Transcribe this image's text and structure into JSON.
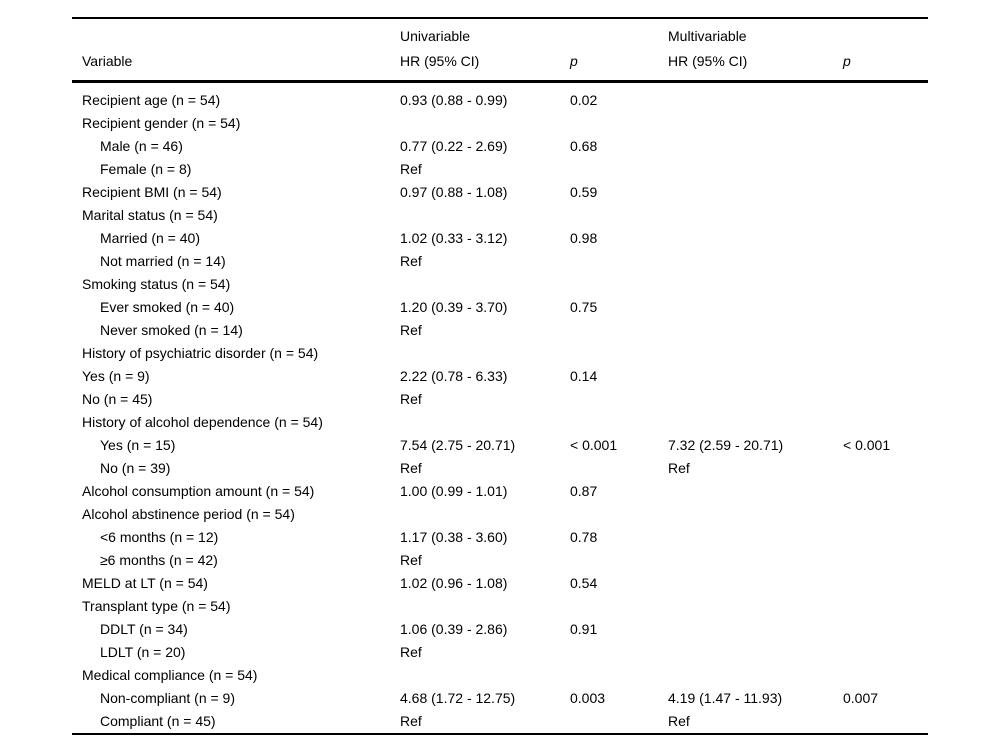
{
  "colors": {
    "text": "#000000",
    "background": "#ffffff",
    "rule": "#000000"
  },
  "table": {
    "header": {
      "group_univariable": "Univariable",
      "group_multivariable": "Multivariable",
      "col_variable": "Variable",
      "col_uni_hr": "HR (95% CI)",
      "col_uni_p": "p",
      "col_multi_hr": "HR (95% CI)",
      "col_multi_p": "p"
    },
    "rows": [
      {
        "variable": "Recipient age (n = 54)",
        "indent": 0,
        "uni_hr": "0.93 (0.88 - 0.99)",
        "uni_p": "0.02",
        "multi_hr": "",
        "multi_p": ""
      },
      {
        "variable": "Recipient gender (n = 54)",
        "indent": 0,
        "uni_hr": "",
        "uni_p": "",
        "multi_hr": "",
        "multi_p": ""
      },
      {
        "variable": "Male (n = 46)",
        "indent": 1,
        "uni_hr": "0.77 (0.22 - 2.69)",
        "uni_p": "0.68",
        "multi_hr": "",
        "multi_p": ""
      },
      {
        "variable": "Female (n = 8)",
        "indent": 1,
        "uni_hr": "Ref",
        "uni_p": "",
        "multi_hr": "",
        "multi_p": ""
      },
      {
        "variable": "Recipient BMI (n = 54)",
        "indent": 0,
        "uni_hr": "0.97 (0.88 - 1.08)",
        "uni_p": "0.59",
        "multi_hr": "",
        "multi_p": ""
      },
      {
        "variable": "Marital status (n = 54)",
        "indent": 0,
        "uni_hr": "",
        "uni_p": "",
        "multi_hr": "",
        "multi_p": ""
      },
      {
        "variable": "Married (n = 40)",
        "indent": 1,
        "uni_hr": "1.02 (0.33 - 3.12)",
        "uni_p": "0.98",
        "multi_hr": "",
        "multi_p": ""
      },
      {
        "variable": "Not married (n = 14)",
        "indent": 1,
        "uni_hr": "Ref",
        "uni_p": "",
        "multi_hr": "",
        "multi_p": ""
      },
      {
        "variable": "Smoking status (n = 54)",
        "indent": 0,
        "uni_hr": "",
        "uni_p": "",
        "multi_hr": "",
        "multi_p": ""
      },
      {
        "variable": "Ever smoked (n = 40)",
        "indent": 1,
        "uni_hr": "1.20 (0.39 - 3.70)",
        "uni_p": "0.75",
        "multi_hr": "",
        "multi_p": ""
      },
      {
        "variable": "Never smoked (n = 14)",
        "indent": 1,
        "uni_hr": "Ref",
        "uni_p": "",
        "multi_hr": "",
        "multi_p": ""
      },
      {
        "variable": "History of psychiatric disorder (n = 54)",
        "indent": 0,
        "uni_hr": "",
        "uni_p": "",
        "multi_hr": "",
        "multi_p": ""
      },
      {
        "variable": "Yes (n = 9)",
        "indent": 0,
        "uni_hr": "2.22 (0.78 - 6.33)",
        "uni_p": "0.14",
        "multi_hr": "",
        "multi_p": ""
      },
      {
        "variable": "No (n = 45)",
        "indent": 0,
        "uni_hr": "Ref",
        "uni_p": "",
        "multi_hr": "",
        "multi_p": ""
      },
      {
        "variable": "History of alcohol dependence (n = 54)",
        "indent": 0,
        "uni_hr": "",
        "uni_p": "",
        "multi_hr": "",
        "multi_p": ""
      },
      {
        "variable": "Yes (n = 15)",
        "indent": 1,
        "uni_hr": "7.54 (2.75 - 20.71)",
        "uni_p": "< 0.001",
        "multi_hr": "7.32 (2.59 - 20.71)",
        "multi_p": "< 0.001"
      },
      {
        "variable": "No (n = 39)",
        "indent": 1,
        "uni_hr": "Ref",
        "uni_p": "",
        "multi_hr": "Ref",
        "multi_p": ""
      },
      {
        "variable": "Alcohol consumption amount (n = 54)",
        "indent": 0,
        "uni_hr": "1.00 (0.99 - 1.01)",
        "uni_p": "0.87",
        "multi_hr": "",
        "multi_p": ""
      },
      {
        "variable": "Alcohol abstinence period (n = 54)",
        "indent": 0,
        "uni_hr": "",
        "uni_p": "",
        "multi_hr": "",
        "multi_p": ""
      },
      {
        "variable": "<6 months (n = 12)",
        "indent": 1,
        "uni_hr": "1.17 (0.38 - 3.60)",
        "uni_p": "0.78",
        "multi_hr": "",
        "multi_p": ""
      },
      {
        "variable": "≥6 months (n = 42)",
        "indent": 1,
        "uni_hr": "Ref",
        "uni_p": "",
        "multi_hr": "",
        "multi_p": ""
      },
      {
        "variable": "MELD at LT (n = 54)",
        "indent": 0,
        "uni_hr": "1.02 (0.96 - 1.08)",
        "uni_p": "0.54",
        "multi_hr": "",
        "multi_p": ""
      },
      {
        "variable": "Transplant type (n = 54)",
        "indent": 0,
        "uni_hr": "",
        "uni_p": "",
        "multi_hr": "",
        "multi_p": ""
      },
      {
        "variable": "DDLT (n = 34)",
        "indent": 1,
        "uni_hr": "1.06 (0.39 - 2.86)",
        "uni_p": "0.91",
        "multi_hr": "",
        "multi_p": ""
      },
      {
        "variable": "LDLT (n = 20)",
        "indent": 1,
        "uni_hr": "Ref",
        "uni_p": "",
        "multi_hr": "",
        "multi_p": ""
      },
      {
        "variable": "Medical compliance (n = 54)",
        "indent": 0,
        "uni_hr": "",
        "uni_p": "",
        "multi_hr": "",
        "multi_p": ""
      },
      {
        "variable": "Non-compliant (n = 9)",
        "indent": 1,
        "uni_hr": "4.68 (1.72 - 12.75)",
        "uni_p": "0.003",
        "multi_hr": "4.19 (1.47 - 11.93)",
        "multi_p": "0.007"
      },
      {
        "variable": "Compliant (n = 45)",
        "indent": 1,
        "uni_hr": "Ref",
        "uni_p": "",
        "multi_hr": "Ref",
        "multi_p": ""
      }
    ]
  }
}
